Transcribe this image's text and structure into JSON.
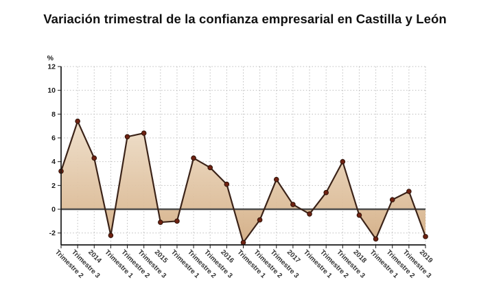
{
  "title": "Variación trimestral de la confianza empresarial en Castilla y León",
  "chart_data": {
    "type": "area",
    "title": "Variación trimestral de la confianza empresarial en Castilla y León",
    "unit_label": "%",
    "xlabel": "",
    "ylabel": "%",
    "categories": [
      "Trimestre 2",
      "Trimestre 3",
      "2014",
      "Trimestre 1",
      "Trimestre 2",
      "Trimestre 3",
      "2015",
      "Trimestre 1",
      "Trimestre 2",
      "Trimestre 3",
      "2016",
      "Trimestre 1",
      "Trimestre 2",
      "Trimestre 3",
      "2017",
      "Trimestre 1",
      "Trimestre 2",
      "Trimestre 3",
      "2018",
      "Trimestre 1",
      "Trimestre 2",
      "Trimestre 3",
      "2019"
    ],
    "values": [
      3.2,
      7.4,
      4.3,
      -2.2,
      6.1,
      6.4,
      -1.1,
      -1.0,
      4.3,
      3.5,
      2.1,
      -2.8,
      -0.9,
      2.5,
      0.4,
      -0.4,
      1.4,
      4.0,
      -0.5,
      -2.5,
      0.8,
      1.5,
      -2.3
    ],
    "ylim": [
      -3,
      12
    ],
    "yticks": [
      12,
      10,
      8,
      6,
      4,
      2,
      0,
      -2
    ],
    "grid": "dotted horizontal and vertical",
    "legend": "none",
    "zero_line": true,
    "colors": {
      "line": "#3b2318",
      "marker": "#6e2212",
      "marker_edge": "#2e1208",
      "area_top": "#faf4e8",
      "area_zero": "#dcbc98",
      "area_bottom": "#d1ab82",
      "grid": "#bcbcbc",
      "axis": "#161616",
      "zero_line_color": "#4d4d4d",
      "background": "#ffffff"
    }
  }
}
